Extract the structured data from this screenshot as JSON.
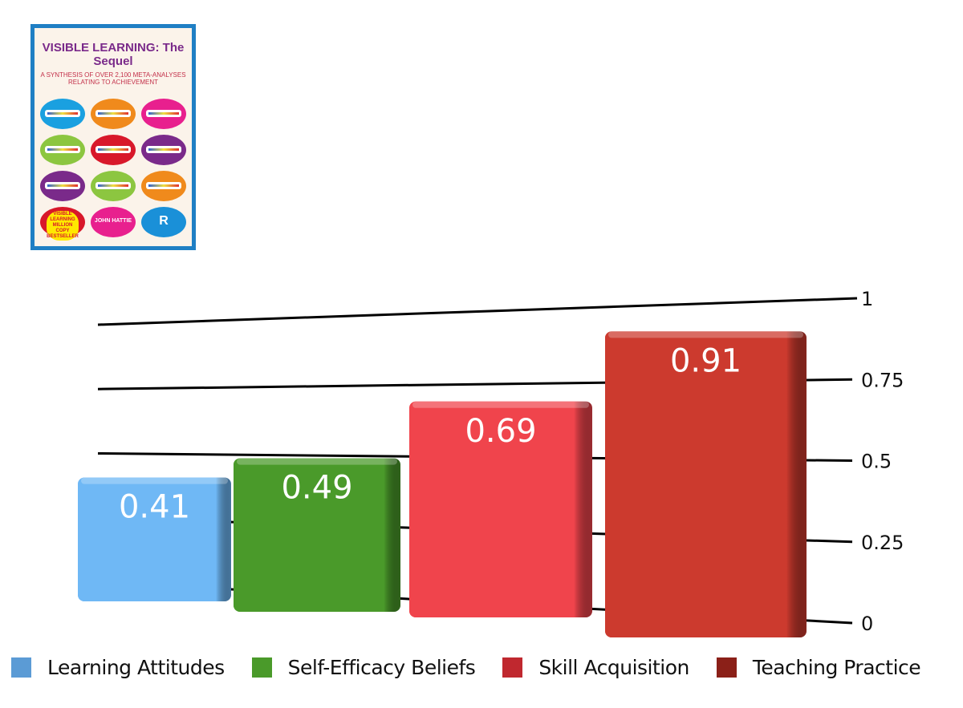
{
  "cover": {
    "title": "VISIBLE LEARNING: The Sequel",
    "subtitle": "A SYNTHESIS OF OVER 2,100 META-ANALYSES RELATING TO ACHIEVEMENT",
    "author": "JOHN HATTIE",
    "badge": "VISIBLE LEARNING MILLION COPY BESTSELLER",
    "publisher_logo": "R"
  },
  "chart_data": {
    "type": "bar",
    "categories": [
      "Learning Attitudes",
      "Self-Efficacy Beliefs",
      "Skill Acquisition",
      "Teaching Practice"
    ],
    "values": [
      0.41,
      0.49,
      0.69,
      0.91
    ],
    "data_labels": [
      "0.41",
      "0.49",
      "0.69",
      "0.91"
    ],
    "colors": [
      "#6fb8f5",
      "#4a9a2a",
      "#f0444c",
      "#cc3a2e"
    ],
    "legend_colors": [
      "#5b9bd5",
      "#4a9a2a",
      "#c0282f",
      "#8b2018"
    ],
    "ylim": [
      0,
      1
    ],
    "yticks": [
      "0",
      "0.25",
      "0.5",
      "0.75",
      "1"
    ],
    "grid": true,
    "legend": "bottom",
    "style": "3d perspective"
  }
}
